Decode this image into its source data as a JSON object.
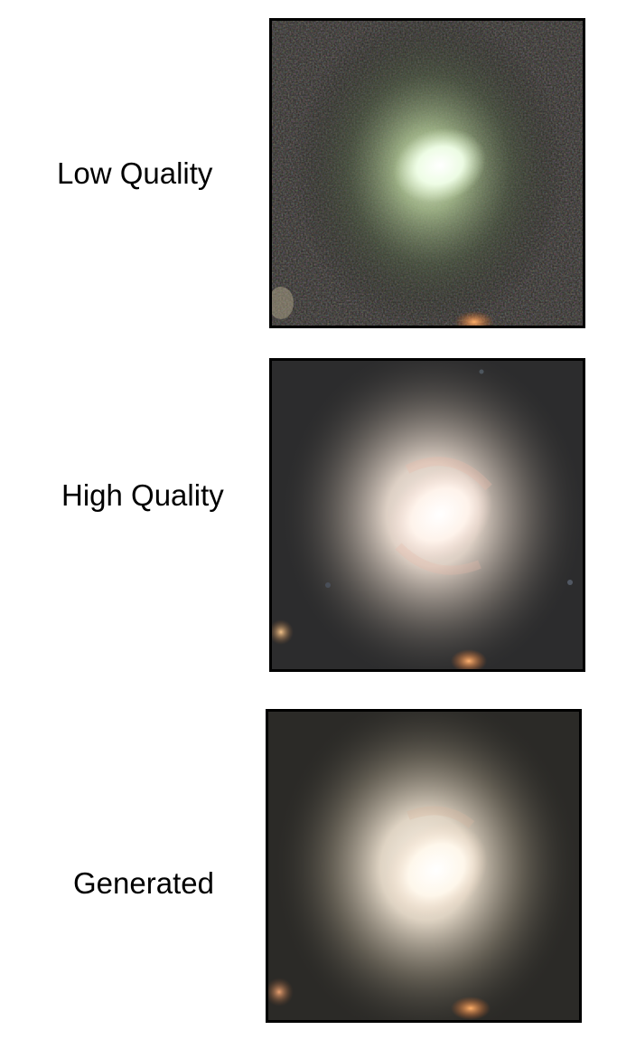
{
  "rows": [
    {
      "label": "Low Quality"
    },
    {
      "label": "High Quality"
    },
    {
      "label": "Generated"
    }
  ]
}
